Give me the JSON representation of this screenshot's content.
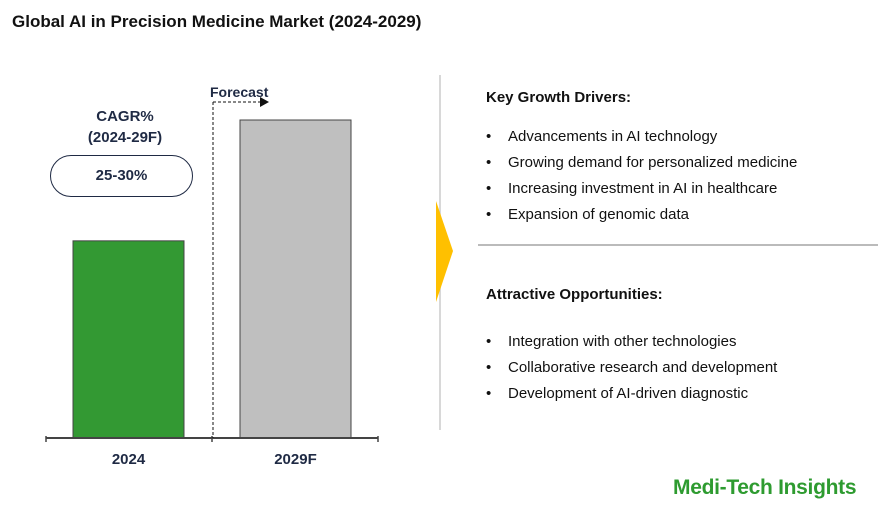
{
  "title": "Global AI in Precision Medicine Market (2024-2029)",
  "cagr": {
    "label_line1": "CAGR%",
    "label_line2": "(2024-29F)",
    "value": "25-30%"
  },
  "forecast_label": "Forecast",
  "chart_data": {
    "type": "bar",
    "categories": [
      "2024",
      "2029F"
    ],
    "values": [
      62,
      100
    ],
    "colors": [
      "#339933",
      "#bfbfbf"
    ],
    "title": "",
    "xlabel": "",
    "ylabel": "",
    "grid": false
  },
  "drivers": {
    "heading": "Key Growth Drivers:",
    "items": [
      "Advancements in AI technology",
      "Growing demand for personalized medicine",
      "Increasing investment in AI in healthcare",
      "Expansion of genomic data"
    ]
  },
  "opportunities": {
    "heading": "Attractive Opportunities:",
    "items": [
      "Integration with other technologies",
      "Collaborative research and development",
      "Development of AI-driven diagnostic"
    ]
  },
  "logo": "Medi-Tech Insights",
  "colors": {
    "accent": "#ffc000",
    "brand": "#2e9b30"
  }
}
